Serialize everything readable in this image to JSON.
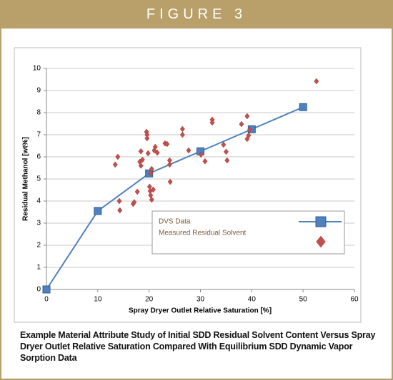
{
  "header": {
    "title": "FIGURE 3"
  },
  "chart_data": {
    "type": "combo",
    "x_label": "Spray Dryer Outlet Relative Saturation [%]",
    "y_label": "Residual Methanol [wt%]",
    "xlim": [
      0,
      60
    ],
    "xticks": [
      0,
      10,
      20,
      30,
      40,
      50,
      60
    ],
    "ylim": [
      0,
      10
    ],
    "yticks": [
      0,
      1,
      2,
      3,
      4,
      5,
      6,
      7,
      8,
      9,
      10
    ],
    "grid": true,
    "legend": "lower right",
    "series": [
      {
        "name": "DVS Data",
        "type": "line",
        "color": "#4f81bd",
        "x": [
          0,
          10,
          20,
          30,
          40,
          50
        ],
        "values": [
          0,
          3.55,
          5.25,
          6.25,
          7.25,
          8.25
        ]
      },
      {
        "name": "Measured Residual Solvent",
        "type": "scatter",
        "color": "#c0504d",
        "x": [
          13.4,
          13.9,
          14.2,
          14.3,
          16.9,
          17.1,
          17.7,
          18.2,
          18.4,
          18.4,
          18.7,
          19.5,
          19.6,
          19.6,
          19.8,
          20.1,
          20.2,
          20.3,
          20.5,
          20.5,
          20.3,
          20.8,
          21.0,
          21.2,
          21.6,
          23.1,
          23.5,
          24.0,
          24.0,
          24.1,
          26.5,
          26.5,
          27.7,
          30.1,
          30.9,
          32.3,
          32.3,
          34.5,
          35.0,
          35.2,
          38.0,
          39.1,
          39.1,
          39.4,
          39.6,
          52.6
        ],
        "values": [
          5.65,
          6.0,
          4.0,
          3.58,
          3.87,
          3.95,
          4.42,
          5.78,
          5.6,
          6.25,
          5.87,
          7.13,
          7.0,
          6.84,
          6.16,
          4.65,
          4.45,
          4.26,
          4.06,
          5.45,
          5.26,
          4.52,
          6.29,
          6.45,
          6.19,
          6.61,
          6.58,
          5.65,
          5.84,
          4.87,
          7.26,
          7.0,
          6.29,
          6.1,
          5.8,
          7.68,
          7.55,
          6.55,
          6.23,
          5.84,
          7.48,
          7.84,
          6.81,
          6.97,
          7.23,
          9.42
        ]
      }
    ]
  },
  "caption": "Example Material Attribute Study of Initial SDD Residual Solvent Content Versus Spray Dryer Outlet Relative Saturation Compared With Equilibrium SDD Dynamic Vapor Sorption Data"
}
